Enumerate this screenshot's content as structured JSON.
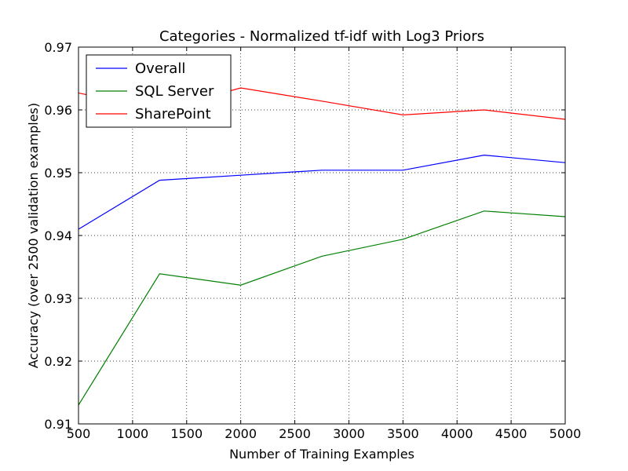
{
  "chart_data": {
    "type": "line",
    "title": "Categories - Normalized tf-idf with Log3 Priors",
    "xlabel": "Number of Training Examples",
    "ylabel": "Accuracy (over 2500 validation examples)",
    "xlim": [
      500,
      5000
    ],
    "ylim": [
      0.91,
      0.97
    ],
    "grid": true,
    "legend_position": "upper-left",
    "xticks": [
      "500",
      "1000",
      "1500",
      "2000",
      "2500",
      "3000",
      "3500",
      "4000",
      "4500",
      "5000"
    ],
    "xtick_values": [
      500,
      1000,
      1500,
      2000,
      2500,
      3000,
      3500,
      4000,
      4500,
      5000
    ],
    "yticks": [
      "0.91",
      "0.92",
      "0.93",
      "0.94",
      "0.95",
      "0.96",
      "0.97"
    ],
    "ytick_values": [
      0.91,
      0.92,
      0.93,
      0.94,
      0.95,
      0.96,
      0.97
    ],
    "x": [
      500,
      1250,
      2000,
      2750,
      3500,
      4250,
      5000
    ],
    "series": [
      {
        "name": "Overall",
        "color": "#0000ff",
        "values": [
          0.941,
          0.9488,
          0.9496,
          0.9504,
          0.9504,
          0.9528,
          0.9516
        ]
      },
      {
        "name": "SQL Server",
        "color": "#008000",
        "values": [
          0.913,
          0.9339,
          0.9321,
          0.9367,
          0.9394,
          0.9439,
          0.943
        ]
      },
      {
        "name": "SharePoint",
        "color": "#ff0000",
        "values": [
          0.9627,
          0.96,
          0.9635,
          0.9614,
          0.9592,
          0.96,
          0.9585
        ]
      }
    ]
  }
}
